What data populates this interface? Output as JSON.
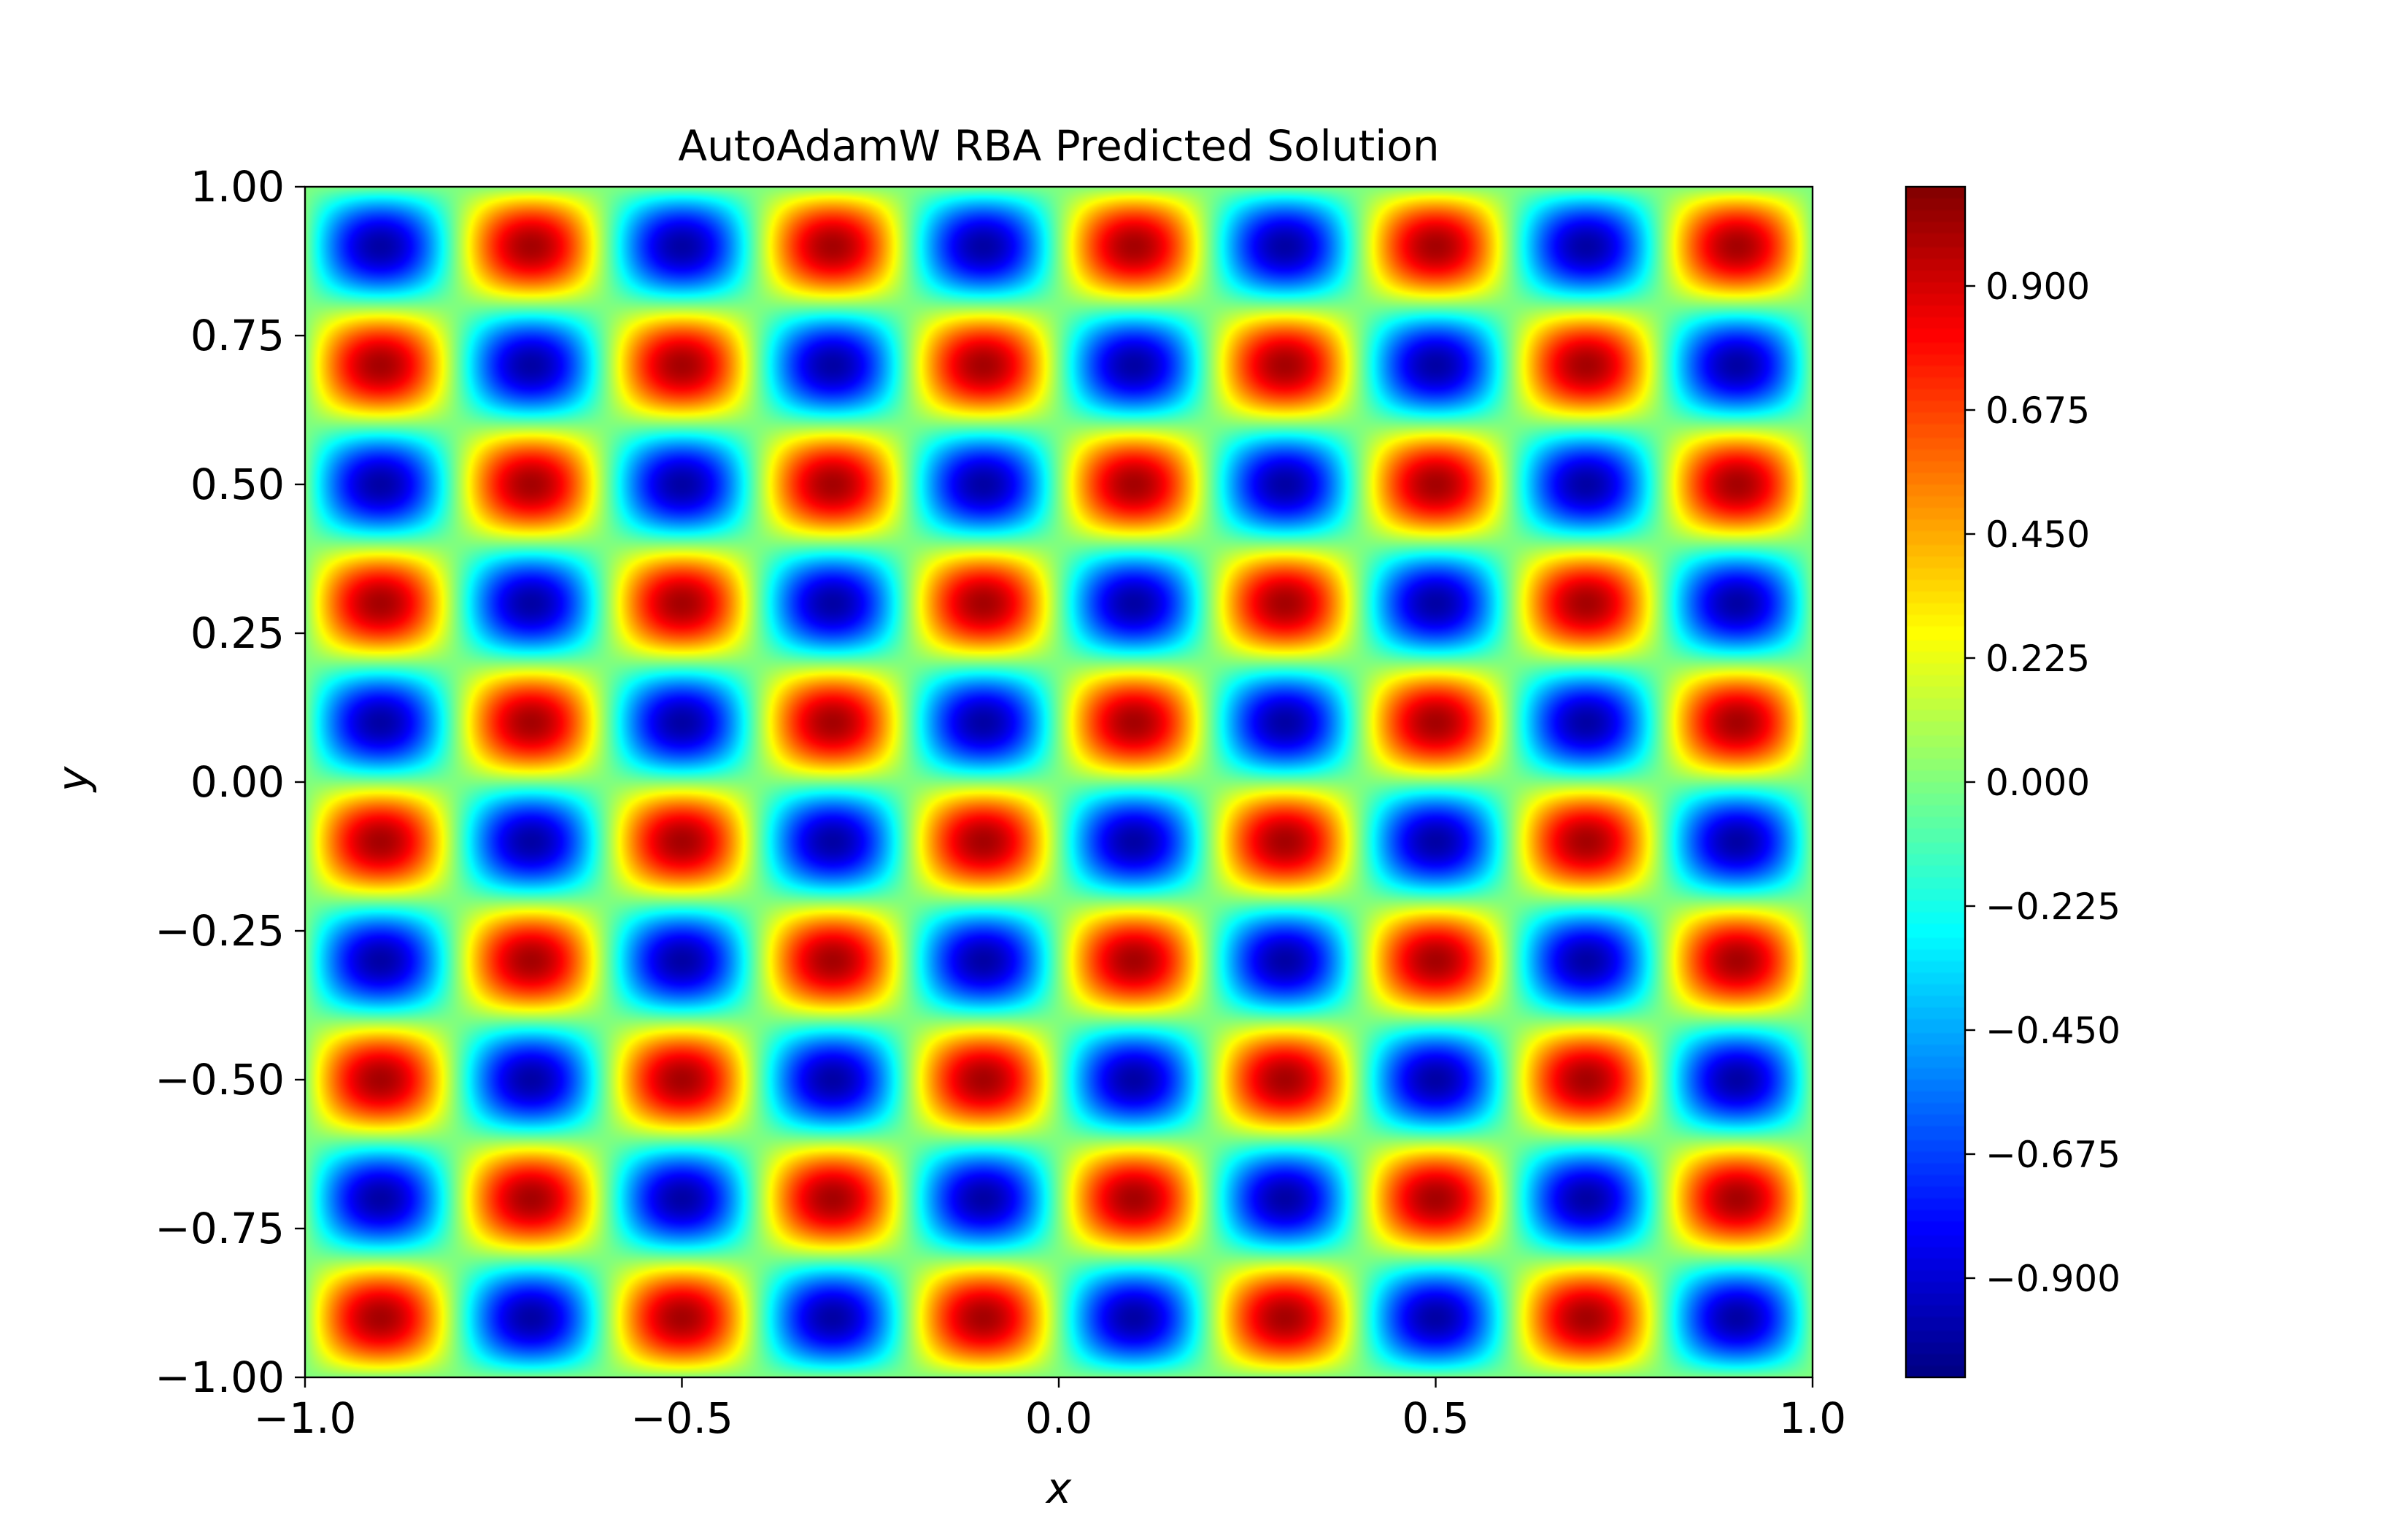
{
  "chart_data": {
    "type": "heatmap",
    "title": "AutoAdamW RBA Predicted Solution",
    "xlabel": "x",
    "ylabel": "y",
    "xlim": [
      -1.0,
      1.0
    ],
    "ylim": [
      -1.0,
      1.0
    ],
    "x_ticks": [
      -1.0,
      -0.5,
      0.0,
      0.5,
      1.0
    ],
    "x_tick_labels": [
      "−1.0",
      "−0.5",
      "0.0",
      "0.5",
      "1.0"
    ],
    "y_ticks": [
      1.0,
      0.75,
      0.5,
      0.25,
      0.0,
      -0.25,
      -0.5,
      -0.75,
      -1.0
    ],
    "y_tick_labels": [
      "1.00",
      "0.75",
      "0.50",
      "0.25",
      "0.00",
      "−0.25",
      "−0.50",
      "−0.75",
      "−1.00"
    ],
    "grid": false,
    "colormap": "jet",
    "colorbar": {
      "range": [
        -1.08,
        1.08
      ],
      "ticks": [
        0.9,
        0.675,
        0.45,
        0.225,
        0.0,
        -0.225,
        -0.45,
        -0.675,
        -0.9
      ],
      "tick_labels": [
        "0.900",
        "0.675",
        "0.450",
        "0.225",
        "0.000",
        "−0.225",
        "−0.450",
        "−0.675",
        "−0.900"
      ]
    },
    "field": {
      "description": "periodic checkerboard of extrema, 10 x 10 blobs",
      "x_peak_centers": [
        -0.9,
        -0.7,
        -0.5,
        -0.3,
        -0.1,
        0.1,
        0.3,
        0.5,
        0.7,
        0.9
      ],
      "y_peak_centers": [
        0.9,
        0.7,
        0.5,
        0.3,
        0.1,
        -0.1,
        -0.3,
        -0.5,
        -0.7,
        -0.9
      ],
      "value_at_x_-0.9_y_0.9": -1.0,
      "value_at_x_-0.9_y_0.7": 1.0,
      "peak_magnitude": 1.0
    }
  }
}
